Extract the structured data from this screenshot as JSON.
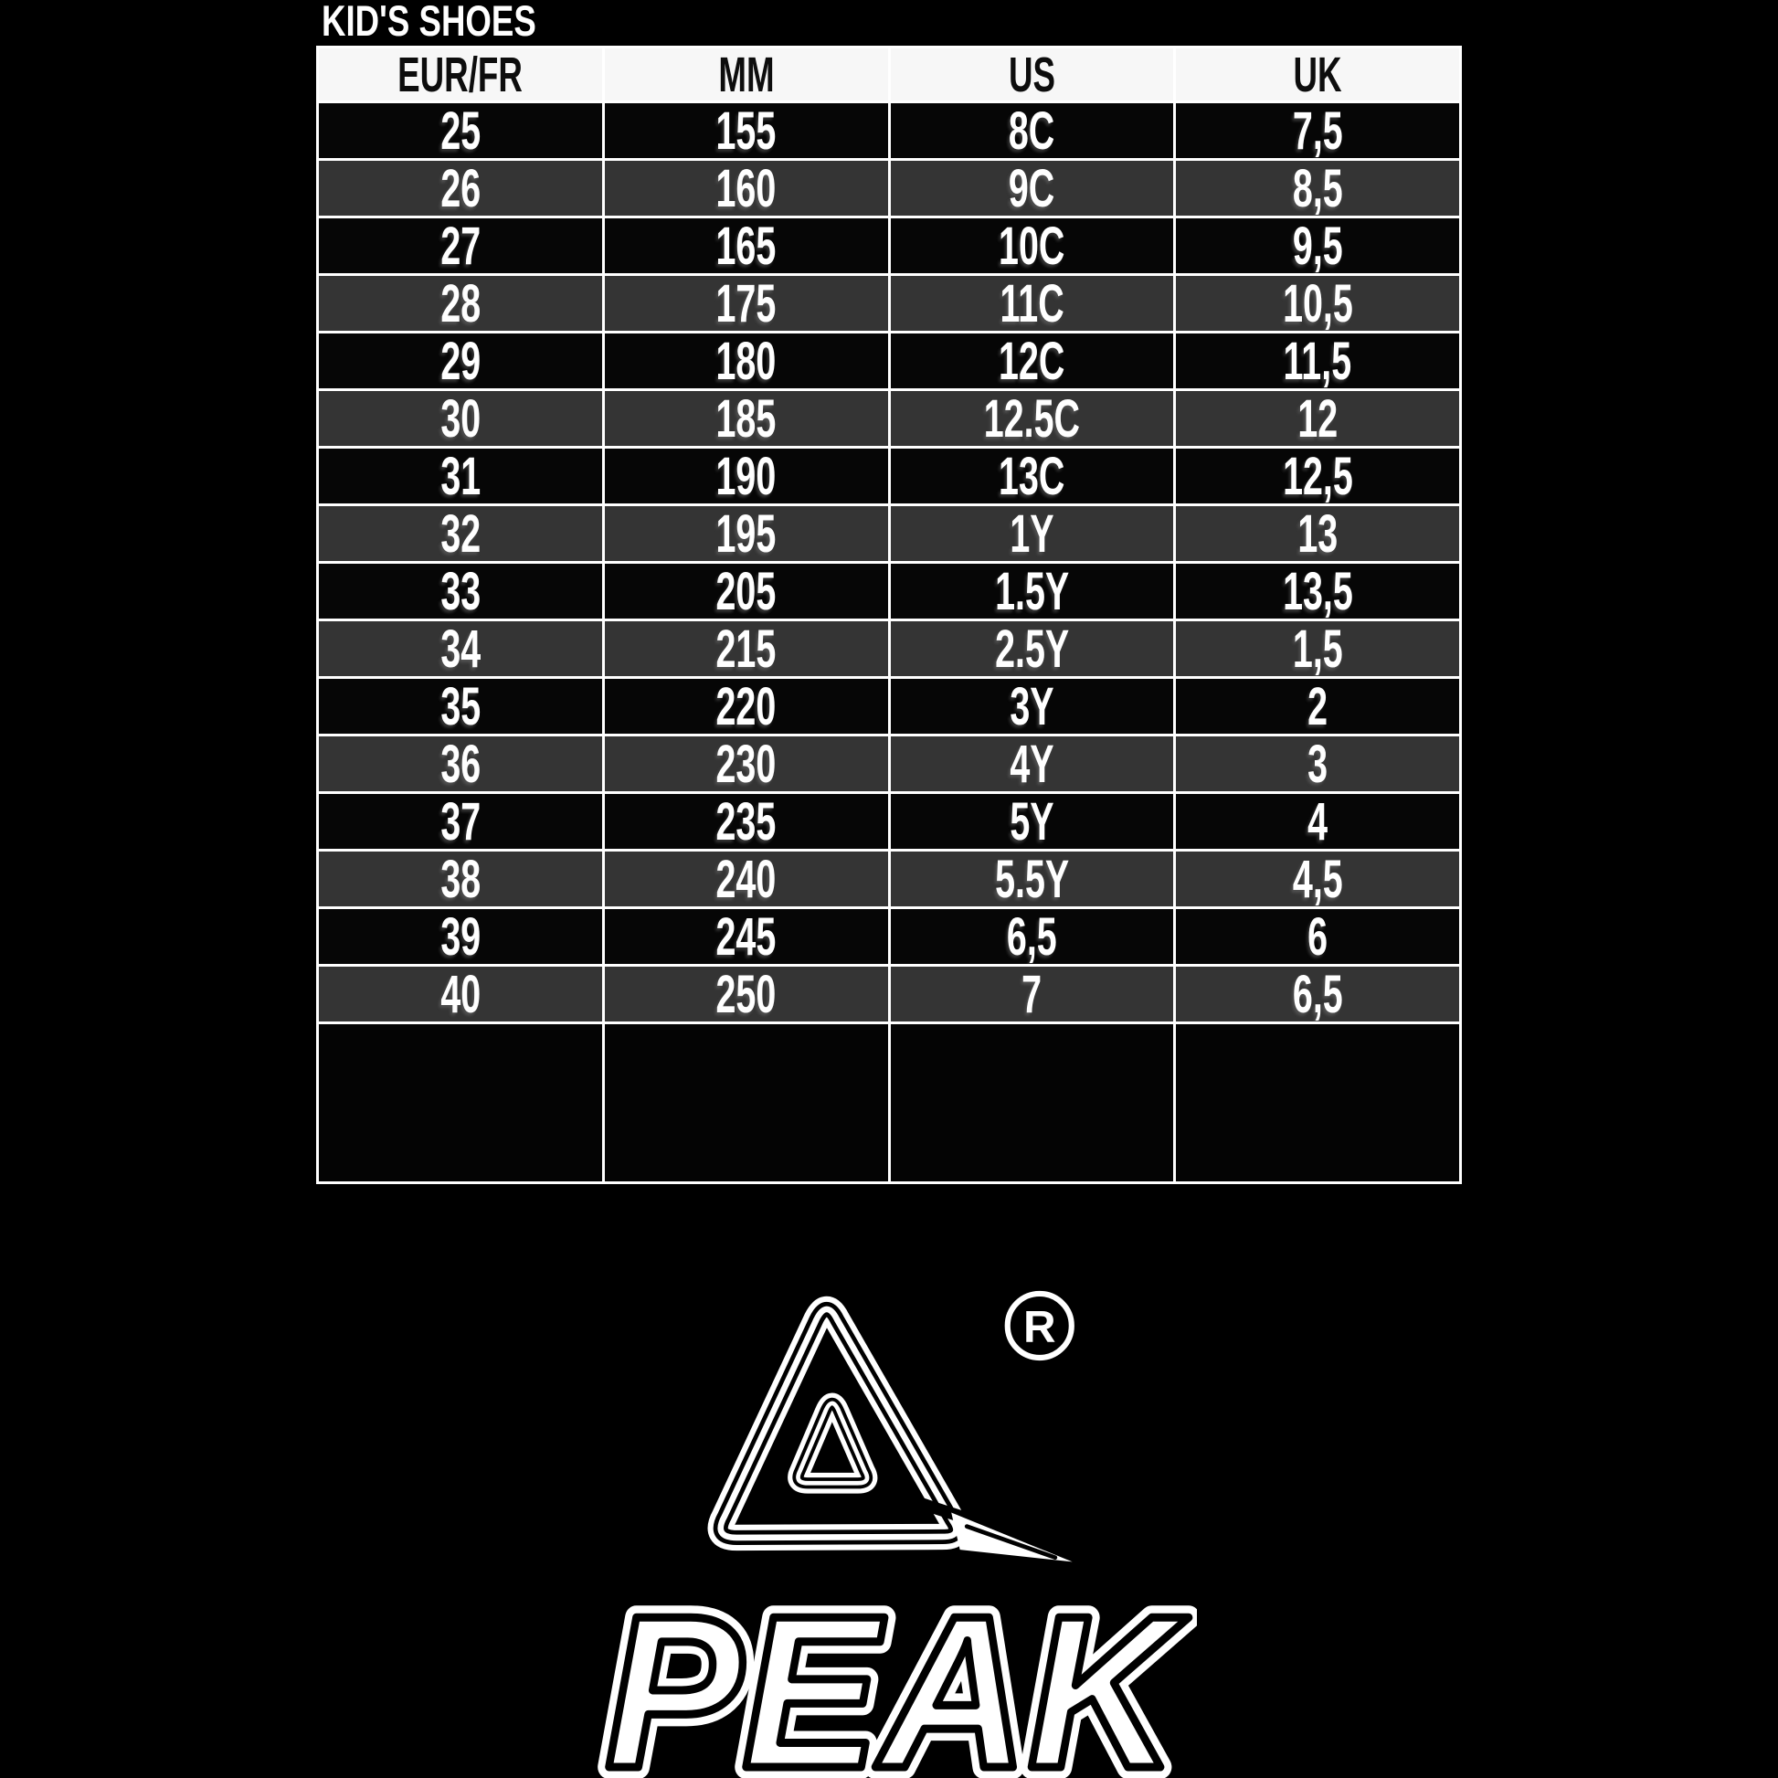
{
  "page": {
    "background": "#000000"
  },
  "chart_data": {
    "type": "table",
    "title": "KID'S SHOES",
    "columns": [
      "EUR/FR",
      "MM",
      "US",
      "UK"
    ],
    "rows": [
      [
        "25",
        "155",
        "8C",
        "7,5"
      ],
      [
        "26",
        "160",
        "9C",
        "8,5"
      ],
      [
        "27",
        "165",
        "10C",
        "9,5"
      ],
      [
        "28",
        "175",
        "11C",
        "10,5"
      ],
      [
        "29",
        "180",
        "12C",
        "11,5"
      ],
      [
        "30",
        "185",
        "12.5C",
        "12"
      ],
      [
        "31",
        "190",
        "13C",
        "12,5"
      ],
      [
        "32",
        "195",
        "1Y",
        "13"
      ],
      [
        "33",
        "205",
        "1.5Y",
        "13,5"
      ],
      [
        "34",
        "215",
        "2.5Y",
        "1,5"
      ],
      [
        "35",
        "220",
        "3Y",
        "2"
      ],
      [
        "36",
        "230",
        "4Y",
        "3"
      ],
      [
        "37",
        "235",
        "5Y",
        "4"
      ],
      [
        "38",
        "240",
        "5.5Y",
        "4,5"
      ],
      [
        "39",
        "245",
        "6,5",
        "6"
      ],
      [
        "40",
        "250",
        "7",
        "6,5"
      ]
    ],
    "has_empty_footer_row": true,
    "legend_position": "none",
    "grid": true
  },
  "table_style": {
    "border_color": "#ffffff",
    "header_bg": "#f7f7f7",
    "header_text": "#0d0d0d",
    "row_bg_dark": "#060606",
    "row_bg_gray": "#343434",
    "cell_text": "#ffffff",
    "empty_row_bg": "#040404"
  },
  "logo": {
    "brand": "PEAK",
    "wordmark": "PEAK",
    "registered_mark": "R",
    "color": "#ffffff"
  }
}
